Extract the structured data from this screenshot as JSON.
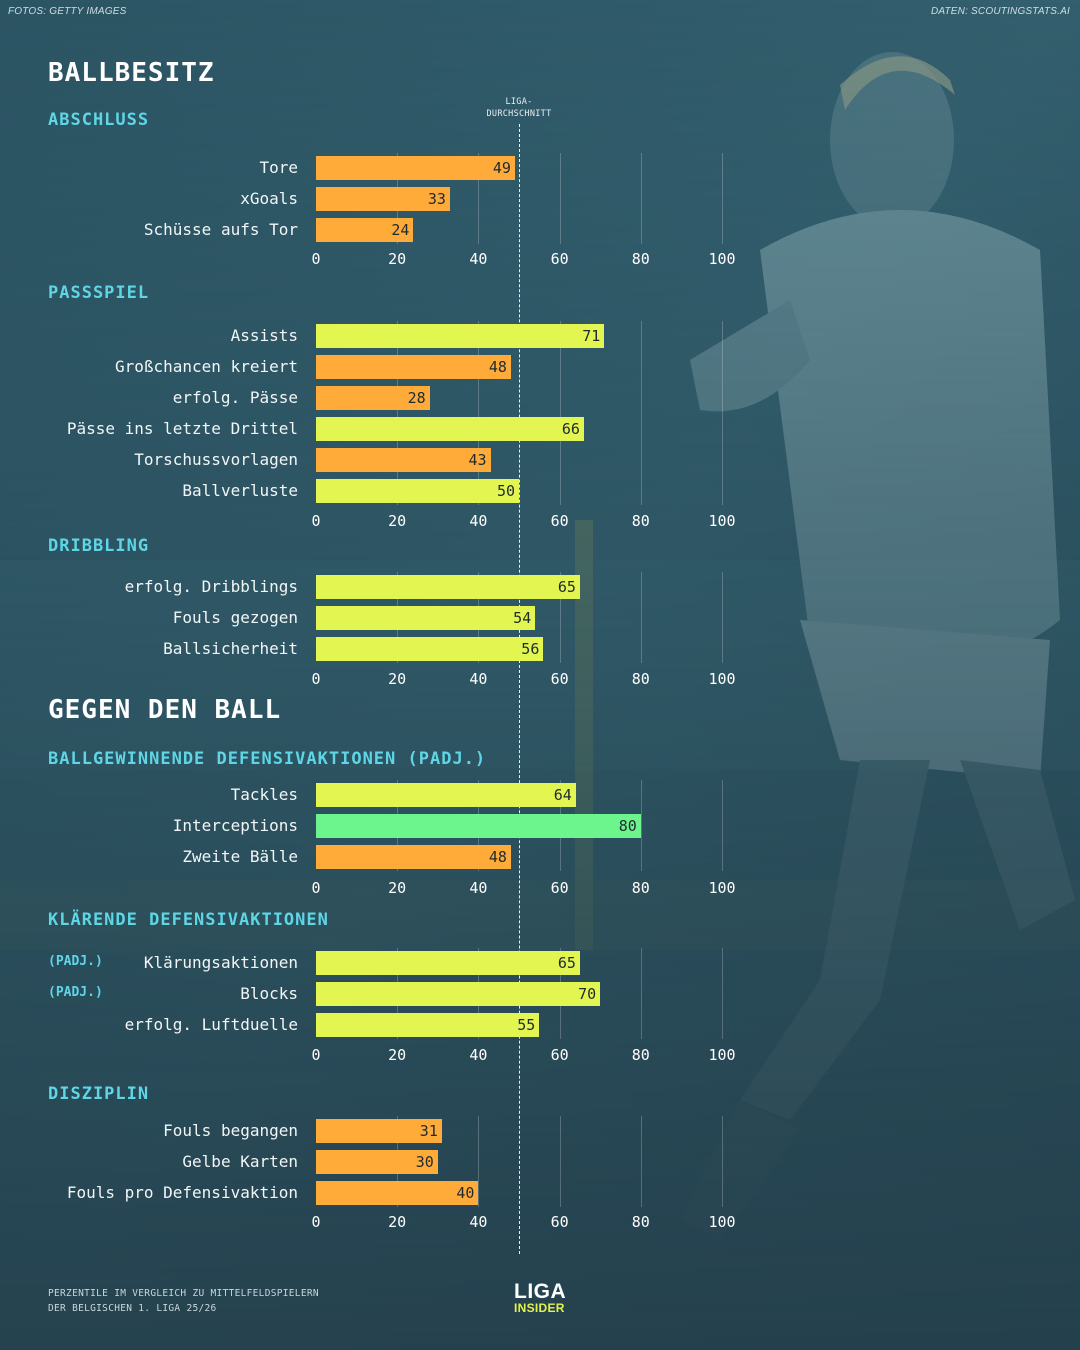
{
  "credits": {
    "photo": "FOTOS: GETTY IMAGES",
    "data": "DATEN: SCOUTINGSTATS.AI"
  },
  "colors": {
    "below_average": "#ffab3a",
    "above_average": "#e2f550",
    "top": "#6cf58c",
    "group_title": "#5fd6e6",
    "background": "#2f5665"
  },
  "average_marker": {
    "line1": "LIGA-",
    "line2": "DURCHSCHNITT",
    "value": 50
  },
  "axis_ticks": [
    "0",
    "20",
    "40",
    "60",
    "80",
    "100"
  ],
  "chart_data": {
    "type": "bar",
    "orientation": "horizontal",
    "xlim": [
      0,
      100
    ],
    "reference_line": 50,
    "sections": [
      {
        "title": "BALLBESITZ",
        "groups": [
          {
            "title": "ABSCHLUSS",
            "metrics": [
              {
                "label": "Tore",
                "value": 49
              },
              {
                "label": "xGoals",
                "value": 33
              },
              {
                "label": "Schüsse aufs Tor",
                "value": 24
              }
            ]
          },
          {
            "title": "PASSSPIEL",
            "metrics": [
              {
                "label": "Assists",
                "value": 71
              },
              {
                "label": "Großchancen kreiert",
                "value": 48
              },
              {
                "label": "erfolg. Pässe",
                "value": 28
              },
              {
                "label": "Pässe ins letzte Drittel",
                "value": 66
              },
              {
                "label": "Torschussvorlagen",
                "value": 43
              },
              {
                "label": "Ballverluste",
                "value": 50
              }
            ]
          },
          {
            "title": "DRIBBLING",
            "metrics": [
              {
                "label": "erfolg. Dribblings",
                "value": 65
              },
              {
                "label": "Fouls gezogen",
                "value": 54
              },
              {
                "label": "Ballsicherheit",
                "value": 56
              }
            ]
          }
        ]
      },
      {
        "title": "GEGEN DEN BALL",
        "groups": [
          {
            "title": "BALLGEWINNENDE DEFENSIVAKTIONEN (PADJ.)",
            "metrics": [
              {
                "label": "Tackles",
                "value": 64
              },
              {
                "label": "Interceptions",
                "value": 80
              },
              {
                "label": "Zweite Bälle",
                "value": 48
              }
            ]
          },
          {
            "title": "KLÄRENDE DEFENSIVAKTIONEN",
            "metrics": [
              {
                "label": "Klärungsaktionen",
                "value": 65,
                "tag": "(PADJ.)"
              },
              {
                "label": "Blocks",
                "value": 70,
                "tag": "(PADJ.)"
              },
              {
                "label": "erfolg. Luftduelle",
                "value": 55
              }
            ]
          },
          {
            "title": "DISZIPLIN",
            "metrics": [
              {
                "label": "Fouls begangen",
                "value": 31
              },
              {
                "label": "Gelbe Karten",
                "value": 30
              },
              {
                "label": "Fouls pro Defensivaktion",
                "value": 40
              }
            ]
          }
        ]
      }
    ]
  },
  "footnote": {
    "line1": "PERZENTILE IM VERGLEICH ZU MITTELFELDSPIELERN",
    "line2": "DER BELGISCHEN 1. LIGA 25/26"
  },
  "logo": {
    "line1": "LIGA",
    "line2": "INSIDER"
  }
}
